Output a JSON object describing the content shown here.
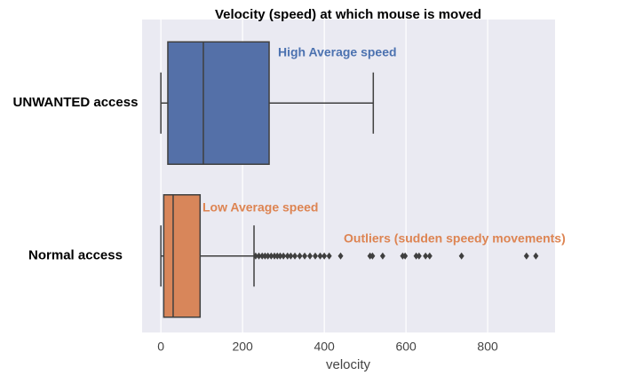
{
  "chart_data": {
    "type": "boxplot",
    "title": "Velocity (speed) at which mouse is moved",
    "x_label": "velocity",
    "categories": [
      "UNWANTED access",
      "Normal access"
    ],
    "boxes": [
      {
        "color": "#5470a8",
        "whislo": 0,
        "q1": 17,
        "med": 104,
        "q3": 265,
        "whishi": 520,
        "fliers": []
      },
      {
        "color": "#d8865a",
        "whislo": 0,
        "q1": 7,
        "med": 30,
        "q3": 96,
        "whishi": 228,
        "fliers": [
          232,
          240,
          248,
          255,
          262,
          270,
          278,
          285,
          292,
          300,
          310,
          318,
          328,
          340,
          352,
          365,
          378,
          390,
          400,
          412,
          440,
          512,
          518,
          543,
          592,
          598,
          625,
          632,
          648,
          658,
          736,
          895,
          918
        ]
      }
    ],
    "xlim": [
      -46,
      965
    ],
    "xticks": [
      0,
      200,
      400,
      600,
      800
    ],
    "grid": true,
    "annotations": [
      {
        "text": "High Average speed",
        "color": "#4c72b0"
      },
      {
        "text": "Low Average speed",
        "color": "#dd8452"
      },
      {
        "text": "Outliers (sudden speedy movements)",
        "color": "#dd8452"
      }
    ]
  }
}
